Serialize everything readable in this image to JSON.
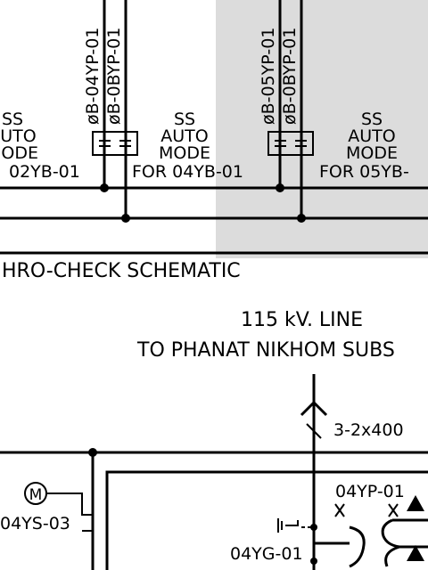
{
  "colors": {
    "ink": "#000000",
    "shade": "#dcdcdc",
    "paper": "#ffffff"
  },
  "top_panel": {
    "wire_labels_left": [
      "øB-04YP-01",
      "øB-0BYP-01"
    ],
    "wire_labels_right": [
      "øB-05YP-01",
      "øB-0BYP-01"
    ],
    "mode_left_partial": {
      "line1": "SS",
      "line2": "AUTO",
      "line3": "MODE",
      "line4": "02YB-01"
    },
    "mode_center": {
      "line1": "SS",
      "line2": "AUTO",
      "line3": "MODE",
      "line4": "FOR 04YB-01"
    },
    "mode_right": {
      "line1": "SS",
      "line2": "AUTO",
      "line3": "MODE",
      "line4": "FOR 05YB-"
    }
  },
  "section_title": "HRO-CHECK SCHEMATIC",
  "line_title": {
    "line1": "115 kV. LINE",
    "line2": "TO PHANAT NIKHOM SUBS"
  },
  "labels": {
    "conductor": "3-2x400",
    "motor_symbol": "M",
    "switch_left": "04YS-03",
    "ground_switch": "04YG-01",
    "pt_label": "04YP-01"
  }
}
